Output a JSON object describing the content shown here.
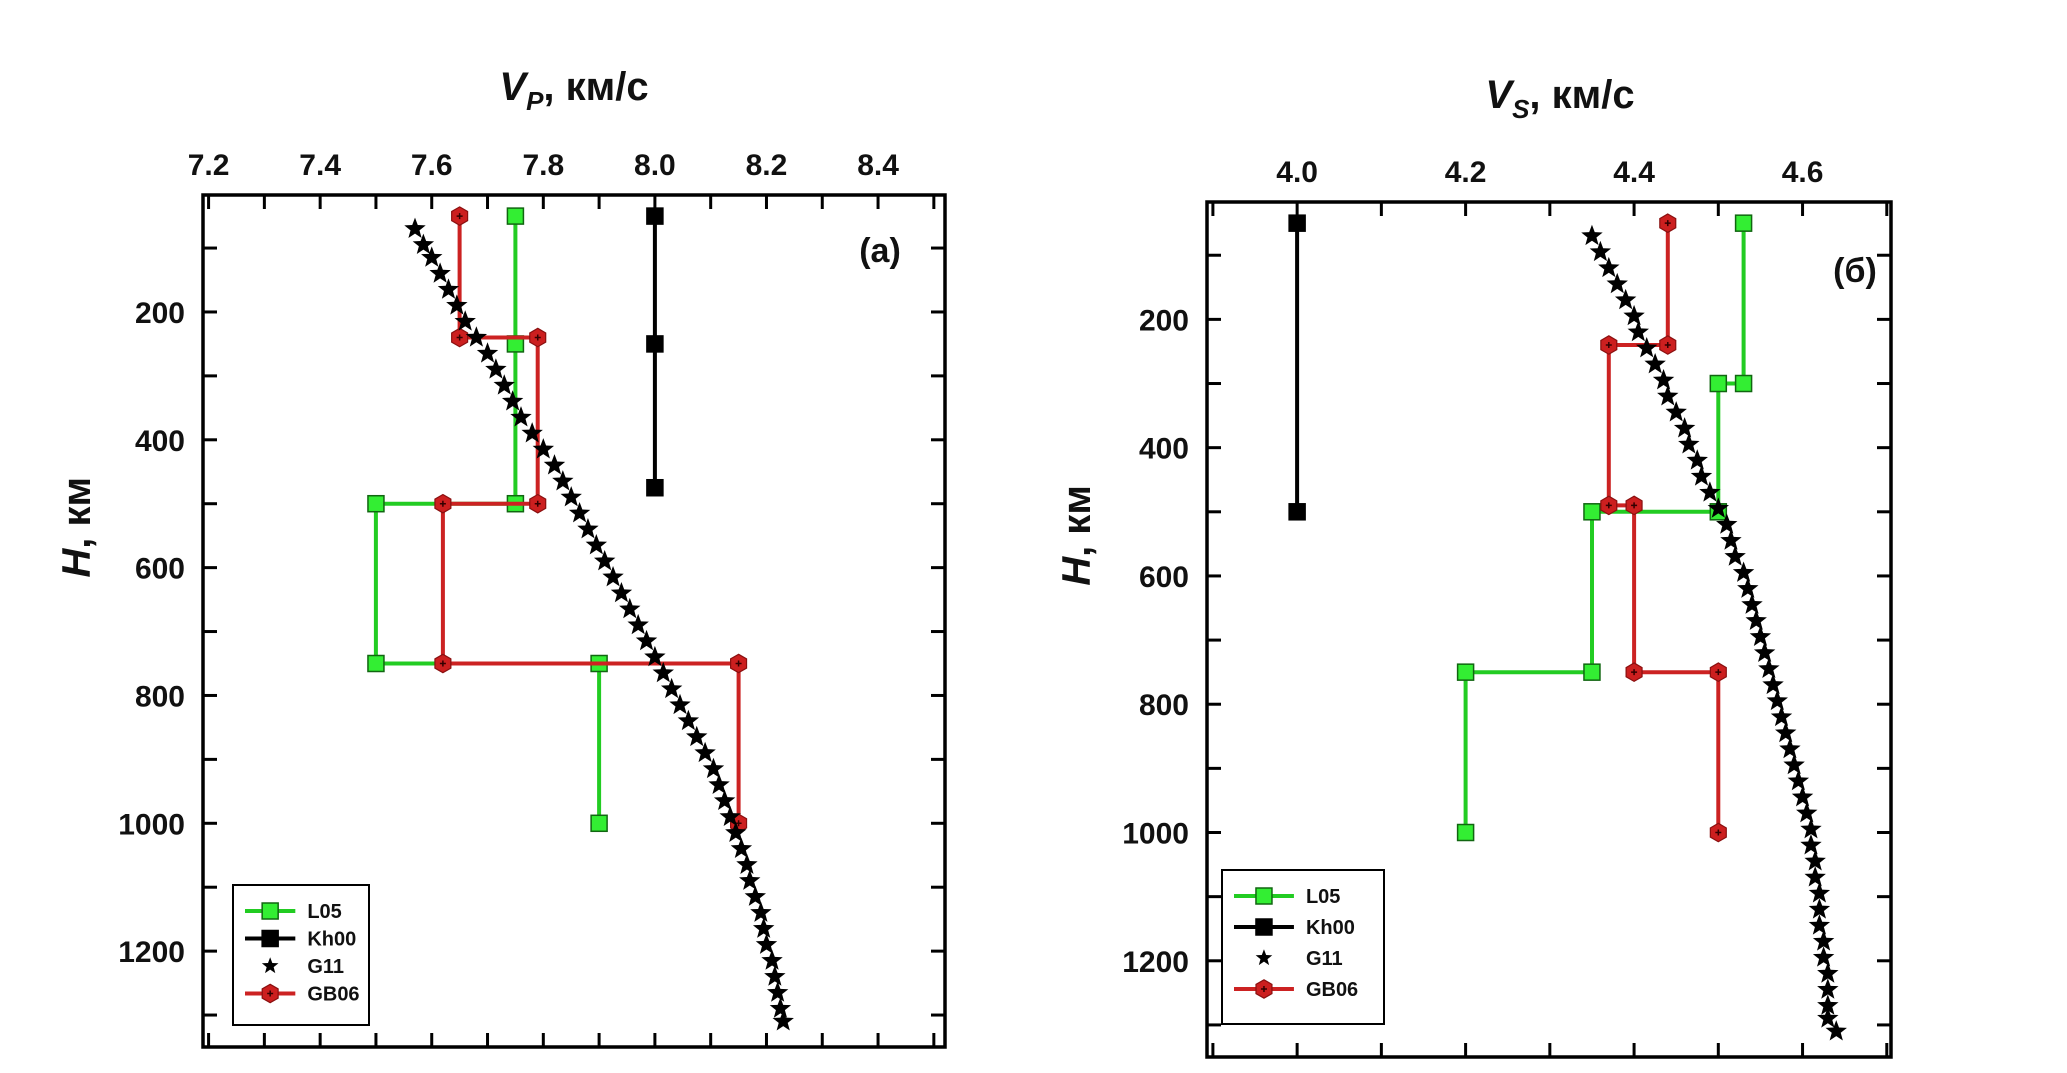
{
  "chart_data": [
    {
      "type": "line",
      "panel_label": "(a)",
      "title": "",
      "xlabel_main": "V",
      "xlabel_sub": "P",
      "xlabel_rest": ", км/с",
      "ylabel_main": "H",
      "ylabel_rest": ", км",
      "xlim": [
        7.19,
        8.52
      ],
      "ylim": [
        1350,
        17
      ],
      "y_inverted": true,
      "x_axis_position": "top",
      "xticks": [
        7.2,
        7.4,
        7.6,
        7.8,
        8.0,
        8.2,
        8.4
      ],
      "xtick_labels": [
        "7.2",
        "7.4",
        "7.6",
        "7.8",
        "8.0",
        "8.2",
        "8.4"
      ],
      "x_minor_step": 0.1,
      "yticks": [
        200,
        400,
        600,
        800,
        1000,
        1200
      ],
      "ytick_labels": [
        "200",
        "400",
        "600",
        "800",
        "1000",
        "1200"
      ],
      "y_minor_step": 100,
      "grid": false,
      "legend_position": "bottom-left",
      "series": [
        {
          "name": "L05",
          "color": "#22cc22",
          "marker": "square",
          "marker_fill": "#33ee33",
          "points": [
            [
              7.75,
              50
            ],
            [
              7.75,
              250
            ],
            [
              7.75,
              500
            ],
            [
              7.5,
              500
            ],
            [
              7.5,
              750
            ],
            [
              7.9,
              750
            ],
            [
              7.9,
              1000
            ]
          ]
        },
        {
          "name": "Kh00",
          "color": "#000000",
          "marker": "square",
          "marker_fill": "#000000",
          "points": [
            [
              8.0,
              50
            ],
            [
              8.0,
              250
            ],
            [
              8.0,
              475
            ]
          ]
        },
        {
          "name": "G11",
          "color": "#000000",
          "marker": "star",
          "marker_fill": "#000000",
          "line": false,
          "points": [
            [
              7.57,
              70
            ],
            [
              7.585,
              95
            ],
            [
              7.6,
              115
            ],
            [
              7.615,
              140
            ],
            [
              7.63,
              165
            ],
            [
              7.645,
              190
            ],
            [
              7.66,
              215
            ],
            [
              7.68,
              240
            ],
            [
              7.7,
              265
            ],
            [
              7.715,
              290
            ],
            [
              7.73,
              315
            ],
            [
              7.745,
              340
            ],
            [
              7.76,
              365
            ],
            [
              7.78,
              390
            ],
            [
              7.8,
              415
            ],
            [
              7.82,
              440
            ],
            [
              7.835,
              465
            ],
            [
              7.85,
              490
            ],
            [
              7.865,
              515
            ],
            [
              7.88,
              540
            ],
            [
              7.895,
              565
            ],
            [
              7.91,
              590
            ],
            [
              7.925,
              615
            ],
            [
              7.94,
              640
            ],
            [
              7.955,
              665
            ],
            [
              7.97,
              690
            ],
            [
              7.985,
              715
            ],
            [
              8.0,
              740
            ],
            [
              8.015,
              765
            ],
            [
              8.03,
              790
            ],
            [
              8.045,
              815
            ],
            [
              8.06,
              840
            ],
            [
              8.075,
              865
            ],
            [
              8.09,
              890
            ],
            [
              8.105,
              915
            ],
            [
              8.115,
              940
            ],
            [
              8.125,
              965
            ],
            [
              8.135,
              990
            ],
            [
              8.145,
              1015
            ],
            [
              8.155,
              1040
            ],
            [
              8.165,
              1065
            ],
            [
              8.17,
              1090
            ],
            [
              8.18,
              1115
            ],
            [
              8.19,
              1140
            ],
            [
              8.195,
              1165
            ],
            [
              8.2,
              1190
            ],
            [
              8.21,
              1215
            ],
            [
              8.215,
              1240
            ],
            [
              8.22,
              1265
            ],
            [
              8.225,
              1290
            ],
            [
              8.23,
              1310
            ]
          ]
        },
        {
          "name": "GB06",
          "color": "#cc2222",
          "marker": "hexagon",
          "marker_fill": "#cc1f1f",
          "points": [
            [
              7.65,
              50
            ],
            [
              7.65,
              240
            ],
            [
              7.79,
              240
            ],
            [
              7.79,
              500
            ],
            [
              7.62,
              500
            ],
            [
              7.62,
              750
            ],
            [
              8.15,
              750
            ],
            [
              8.15,
              1000
            ]
          ]
        }
      ]
    },
    {
      "type": "line",
      "panel_label": "(б)",
      "title": "",
      "xlabel_main": "V",
      "xlabel_sub": "S",
      "xlabel_rest": ", км/с",
      "ylabel_main": "H",
      "ylabel_rest": ", км",
      "xlim": [
        3.893,
        4.705
      ],
      "ylim": [
        1350,
        17
      ],
      "y_inverted": true,
      "x_axis_position": "top",
      "xticks": [
        4.0,
        4.2,
        4.4,
        4.6
      ],
      "xtick_labels": [
        "4.0",
        "4.2",
        "4.4",
        "4.6"
      ],
      "x_minor_step": 0.1,
      "yticks": [
        200,
        400,
        600,
        800,
        1000,
        1200
      ],
      "ytick_labels": [
        "200",
        "400",
        "600",
        "800",
        "1000",
        "1200"
      ],
      "y_minor_step": 100,
      "grid": false,
      "legend_position": "bottom-left",
      "series": [
        {
          "name": "L05",
          "color": "#22cc22",
          "marker": "square",
          "marker_fill": "#33ee33",
          "points": [
            [
              4.53,
              50
            ],
            [
              4.53,
              300
            ],
            [
              4.5,
              300
            ],
            [
              4.5,
              500
            ],
            [
              4.35,
              500
            ],
            [
              4.35,
              750
            ],
            [
              4.2,
              750
            ],
            [
              4.2,
              1000
            ]
          ]
        },
        {
          "name": "Kh00",
          "color": "#000000",
          "marker": "square",
          "marker_fill": "#000000",
          "points": [
            [
              4.0,
              50
            ],
            [
              4.0,
              500
            ]
          ]
        },
        {
          "name": "G11",
          "color": "#000000",
          "marker": "star",
          "marker_fill": "#000000",
          "line": false,
          "points": [
            [
              4.35,
              70
            ],
            [
              4.36,
              95
            ],
            [
              4.37,
              120
            ],
            [
              4.38,
              145
            ],
            [
              4.39,
              170
            ],
            [
              4.4,
              195
            ],
            [
              4.405,
              220
            ],
            [
              4.415,
              245
            ],
            [
              4.425,
              270
            ],
            [
              4.435,
              295
            ],
            [
              4.44,
              320
            ],
            [
              4.45,
              345
            ],
            [
              4.46,
              370
            ],
            [
              4.465,
              395
            ],
            [
              4.475,
              420
            ],
            [
              4.48,
              445
            ],
            [
              4.49,
              470
            ],
            [
              4.5,
              495
            ],
            [
              4.51,
              520
            ],
            [
              4.515,
              545
            ],
            [
              4.52,
              570
            ],
            [
              4.53,
              595
            ],
            [
              4.535,
              620
            ],
            [
              4.54,
              645
            ],
            [
              4.545,
              670
            ],
            [
              4.55,
              695
            ],
            [
              4.555,
              720
            ],
            [
              4.56,
              745
            ],
            [
              4.565,
              770
            ],
            [
              4.57,
              795
            ],
            [
              4.575,
              820
            ],
            [
              4.58,
              845
            ],
            [
              4.585,
              870
            ],
            [
              4.59,
              895
            ],
            [
              4.595,
              920
            ],
            [
              4.6,
              945
            ],
            [
              4.605,
              970
            ],
            [
              4.61,
              995
            ],
            [
              4.61,
              1020
            ],
            [
              4.615,
              1045
            ],
            [
              4.615,
              1070
            ],
            [
              4.62,
              1095
            ],
            [
              4.62,
              1120
            ],
            [
              4.62,
              1145
            ],
            [
              4.625,
              1170
            ],
            [
              4.625,
              1195
            ],
            [
              4.63,
              1220
            ],
            [
              4.63,
              1245
            ],
            [
              4.63,
              1270
            ],
            [
              4.63,
              1290
            ],
            [
              4.64,
              1310
            ]
          ]
        },
        {
          "name": "GB06",
          "color": "#cc2222",
          "marker": "hexagon",
          "marker_fill": "#cc1f1f",
          "points": [
            [
              4.44,
              50
            ],
            [
              4.44,
              240
            ],
            [
              4.37,
              240
            ],
            [
              4.37,
              490
            ],
            [
              4.4,
              490
            ],
            [
              4.4,
              750
            ],
            [
              4.5,
              750
            ],
            [
              4.5,
              1000
            ]
          ]
        }
      ]
    }
  ]
}
